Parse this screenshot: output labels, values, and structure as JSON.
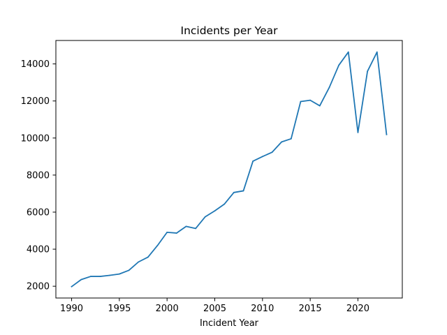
{
  "chart_data": {
    "type": "line",
    "title": "Incidents per Year",
    "xlabel": "Incident Year",
    "ylabel": "",
    "xlim": [
      1988.35,
      2024.65
    ],
    "ylim": [
      1365,
      15265
    ],
    "xticks": [
      1990,
      1995,
      2000,
      2005,
      2010,
      2015,
      2020
    ],
    "yticks": [
      2000,
      4000,
      6000,
      8000,
      10000,
      12000,
      14000
    ],
    "grid": false,
    "series": [
      {
        "color": "#1f77b4",
        "x": [
          1990,
          1991,
          1992,
          1993,
          1994,
          1995,
          1996,
          1997,
          1998,
          1999,
          2000,
          2001,
          2002,
          2003,
          2004,
          2005,
          2006,
          2007,
          2008,
          2009,
          2010,
          2011,
          2012,
          2013,
          2014,
          2015,
          2016,
          2017,
          2018,
          2019,
          2020,
          2021,
          2022,
          2023
        ],
        "y": [
          1980,
          2360,
          2530,
          2530,
          2590,
          2660,
          2860,
          3310,
          3570,
          4200,
          4910,
          4870,
          5230,
          5120,
          5750,
          6070,
          6430,
          7060,
          7150,
          8750,
          9000,
          9230,
          9790,
          9960,
          11970,
          12040,
          11740,
          12730,
          13930,
          14640,
          10300,
          13600,
          14640,
          10190
        ]
      }
    ]
  }
}
